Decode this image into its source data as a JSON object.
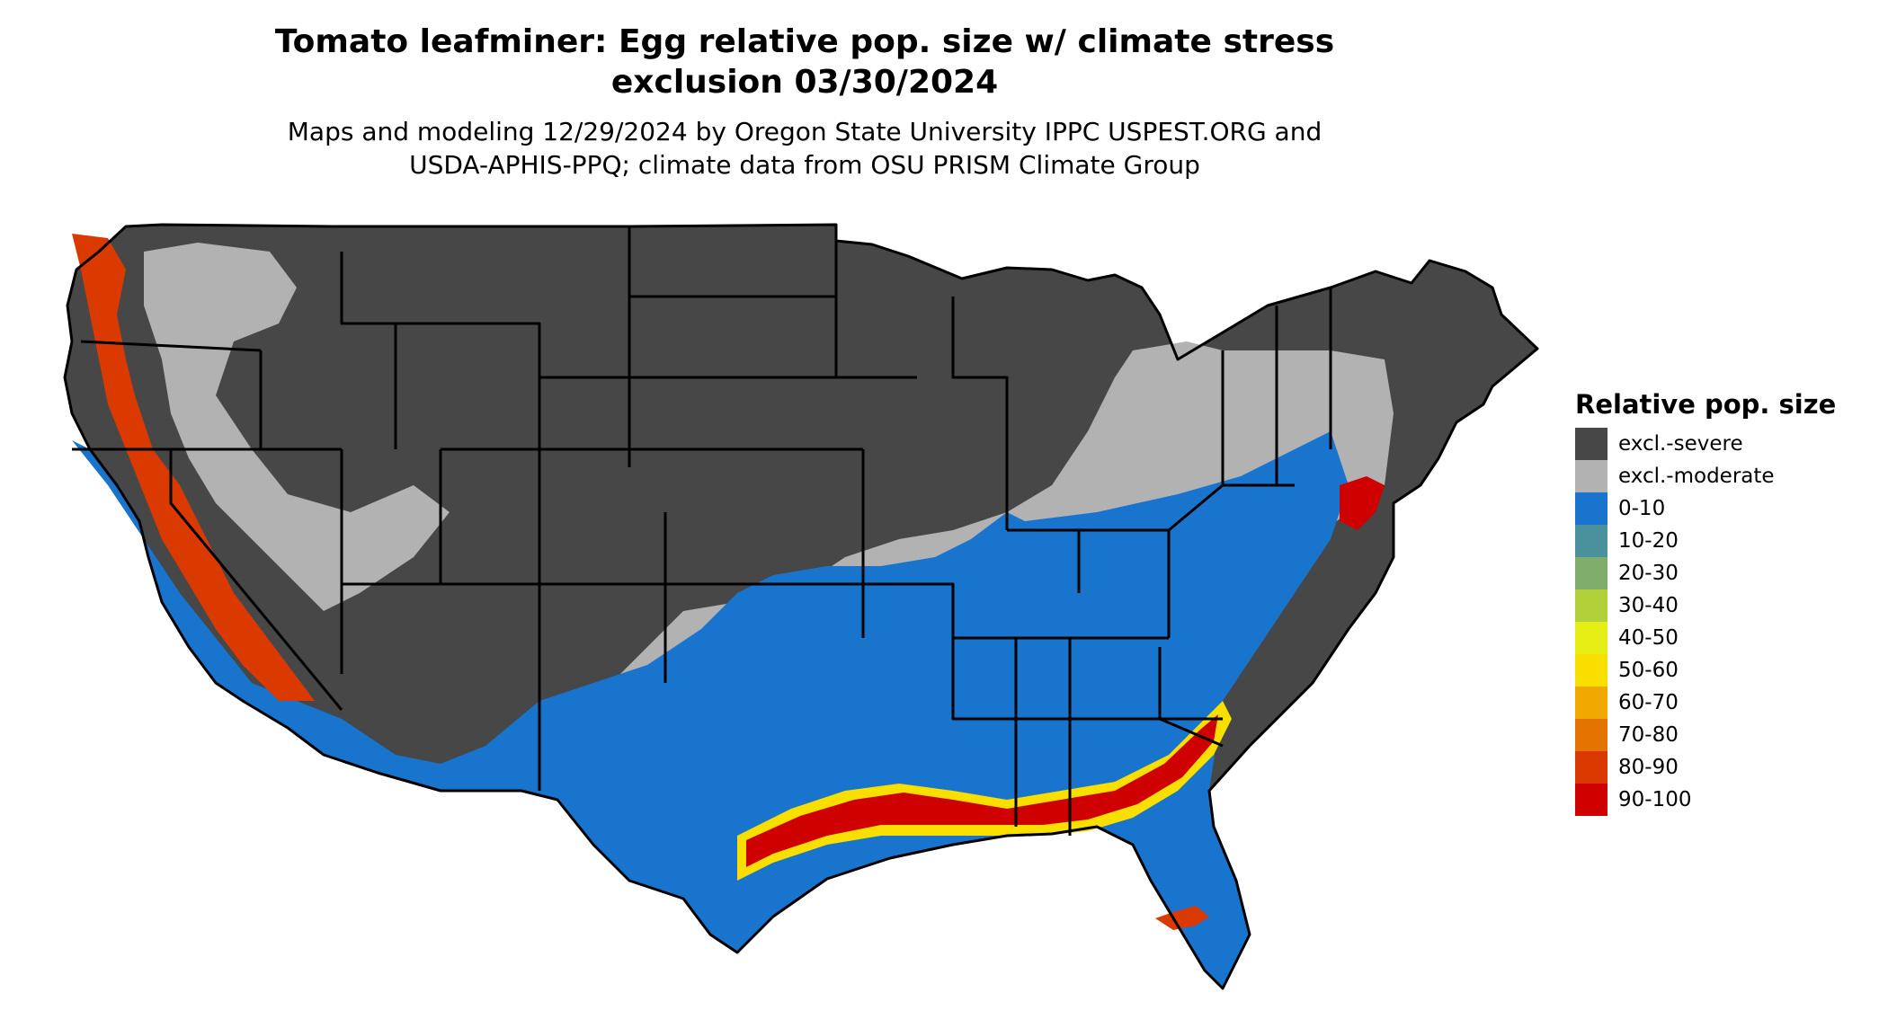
{
  "title_line1": "Tomato leafminer: Egg relative pop. size w/ climate stress",
  "title_line2": "exclusion 03/30/2024",
  "subtitle_line1": "Maps and modeling 12/29/2024 by Oregon State University IPPC USPEST.ORG and",
  "subtitle_line2": "USDA-APHIS-PPQ; climate data from OSU PRISM Climate Group",
  "legend": {
    "title": "Relative pop. size",
    "items": [
      {
        "label": "excl.-severe",
        "color": "#474747"
      },
      {
        "label": "excl.-moderate",
        "color": "#b2b2b2"
      },
      {
        "label": "0-10",
        "color": "#1874cd"
      },
      {
        "label": "10-20",
        "color": "#4a919d"
      },
      {
        "label": "20-30",
        "color": "#7fae6c"
      },
      {
        "label": "30-40",
        "color": "#b2d03a"
      },
      {
        "label": "40-50",
        "color": "#e5ef15"
      },
      {
        "label": "50-60",
        "color": "#f8df00"
      },
      {
        "label": "60-70",
        "color": "#f0a900"
      },
      {
        "label": "70-80",
        "color": "#e57300"
      },
      {
        "label": "80-90",
        "color": "#da3a00"
      },
      {
        "label": "90-100",
        "color": "#cf0000"
      }
    ]
  },
  "map": {
    "region": "Contiguous United States",
    "colors": {
      "severe": "#474747",
      "moderate": "#b2b2b2",
      "low": "#1874cd",
      "mid": "#f8df00",
      "high": "#da3a00",
      "max": "#cf0000",
      "borders": "#000000"
    }
  }
}
